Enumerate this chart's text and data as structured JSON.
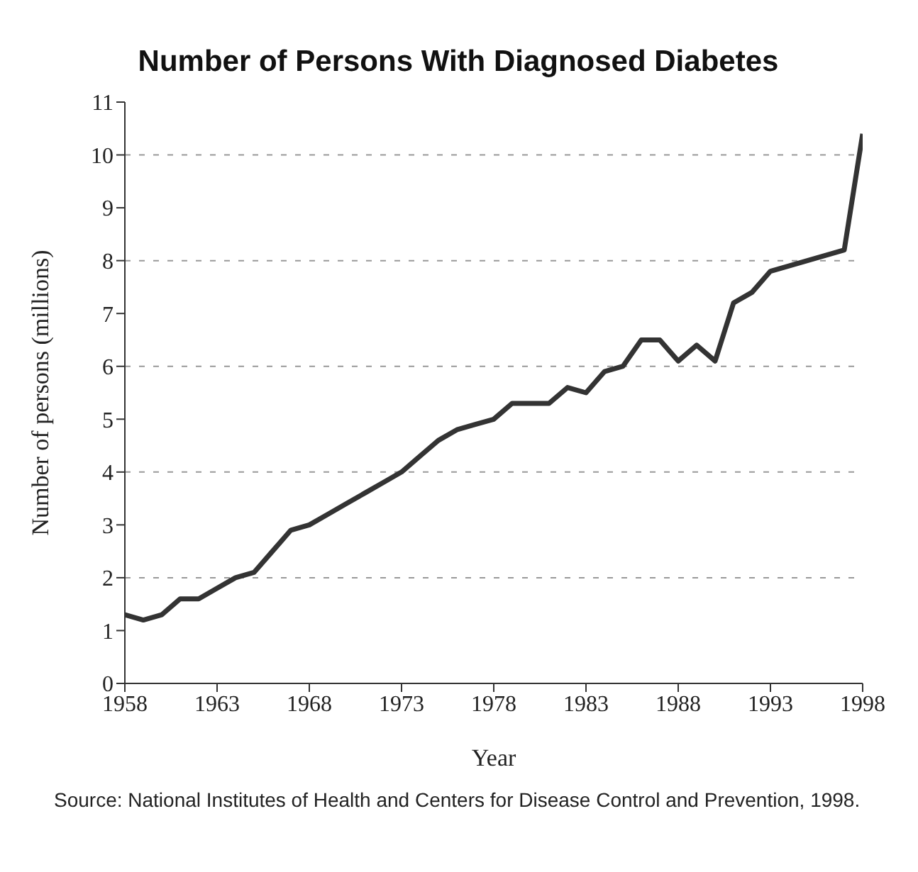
{
  "chart_data": {
    "type": "line",
    "title": "Number of Persons With Diagnosed Diabetes",
    "xlabel": "Year",
    "ylabel": "Number of persons (millions)",
    "x": [
      1958,
      1959,
      1960,
      1961,
      1962,
      1963,
      1964,
      1965,
      1966,
      1967,
      1968,
      1969,
      1970,
      1971,
      1972,
      1973,
      1974,
      1975,
      1976,
      1977,
      1978,
      1979,
      1980,
      1981,
      1982,
      1983,
      1984,
      1985,
      1986,
      1987,
      1988,
      1989,
      1990,
      1991,
      1992,
      1993,
      1994,
      1995,
      1996,
      1997,
      1998
    ],
    "series": [
      {
        "color": "#333333",
        "values": [
          1.3,
          1.2,
          1.3,
          1.6,
          1.6,
          1.8,
          2.0,
          2.1,
          2.5,
          2.9,
          3.0,
          3.2,
          3.4,
          3.6,
          3.8,
          4.0,
          4.3,
          4.6,
          4.8,
          4.9,
          5.0,
          5.3,
          5.3,
          5.3,
          5.6,
          5.5,
          5.9,
          6.0,
          6.5,
          6.5,
          6.1,
          6.4,
          6.1,
          7.2,
          7.4,
          7.8,
          7.9,
          8.0,
          8.1,
          8.2,
          10.4
        ]
      }
    ],
    "xlim": [
      1958,
      1998
    ],
    "xticks": [
      1958,
      1963,
      1968,
      1973,
      1978,
      1983,
      1988,
      1993,
      1998
    ],
    "ylim": [
      0,
      11
    ],
    "yticks": [
      0,
      1,
      2,
      3,
      4,
      5,
      6,
      7,
      8,
      9,
      10,
      11
    ],
    "ref_lines": [
      {
        "axis": "y",
        "value": 2,
        "color": "#999999",
        "line_style": "dashed"
      },
      {
        "axis": "y",
        "value": 4,
        "color": "#999999",
        "line_style": "dashed"
      },
      {
        "axis": "y",
        "value": 6,
        "color": "#999999",
        "line_style": "dashed"
      },
      {
        "axis": "y",
        "value": 8,
        "color": "#999999",
        "line_style": "dashed"
      },
      {
        "axis": "y",
        "value": 10,
        "color": "#999999",
        "line_style": "dashed"
      }
    ],
    "grid": false,
    "legend": false,
    "marker": "none",
    "line_style": "solid",
    "annotations": [
      "Source: National Institutes of Health and Centers for Disease Control and Prevention, 1998."
    ]
  }
}
